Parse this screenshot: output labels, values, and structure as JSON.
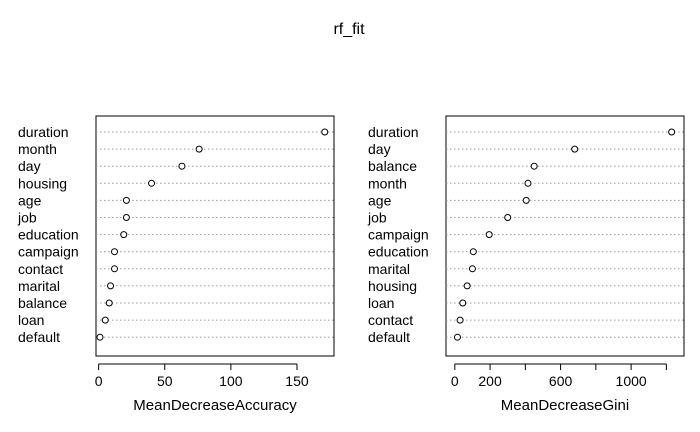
{
  "title": "rf_fit",
  "chart_data": [
    {
      "type": "scatter",
      "xlabel": "MeanDecreaseAccuracy",
      "ylabel": "",
      "xlim": [
        -2,
        178
      ],
      "xticks": [
        0,
        50,
        100,
        150
      ],
      "grid": "dotted horizontal",
      "categories": [
        "duration",
        "month",
        "day",
        "housing",
        "age",
        "job",
        "education",
        "campaign",
        "contact",
        "marital",
        "balance",
        "loan",
        "default"
      ],
      "values": [
        171,
        76,
        63,
        40,
        21,
        21,
        19,
        12,
        12,
        9,
        8,
        5,
        1
      ]
    },
    {
      "type": "scatter",
      "xlabel": "MeanDecreaseGini",
      "ylabel": "",
      "xlim": [
        -50,
        1300
      ],
      "xticks": [
        0,
        200,
        600,
        1000
      ],
      "grid": "dotted horizontal",
      "categories": [
        "duration",
        "day",
        "balance",
        "month",
        "age",
        "job",
        "campaign",
        "education",
        "marital",
        "housing",
        "loan",
        "contact",
        "default"
      ],
      "values": [
        1230,
        680,
        450,
        415,
        405,
        300,
        195,
        105,
        100,
        70,
        45,
        30,
        15
      ]
    }
  ]
}
